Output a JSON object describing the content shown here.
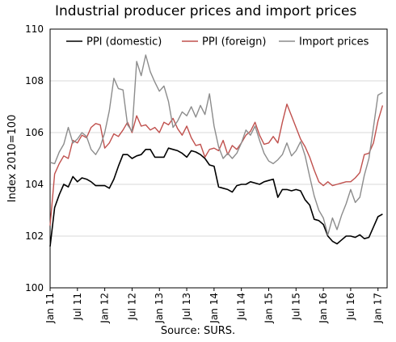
{
  "chart_data": {
    "type": "line",
    "title": "Industrial producer prices and import prices",
    "ylabel": "Index 2010=100",
    "xlabel": "",
    "source": "Source: SURS.",
    "ylim": [
      100,
      110
    ],
    "yticks": [
      100,
      102,
      104,
      106,
      108,
      110
    ],
    "xlim": [
      2011.0,
      2017.1667
    ],
    "xticks": [
      {
        "label": "Jan 11",
        "x": 2011.0
      },
      {
        "label": "Jul 11",
        "x": 2011.5
      },
      {
        "label": "Jan 12",
        "x": 2012.0
      },
      {
        "label": "Jul 12",
        "x": 2012.5
      },
      {
        "label": "Jan 13",
        "x": 2013.0
      },
      {
        "label": "Jul 13",
        "x": 2013.5
      },
      {
        "label": "Jan 14",
        "x": 2014.0
      },
      {
        "label": "Jul 14",
        "x": 2014.5
      },
      {
        "label": "Jan 15",
        "x": 2015.0
      },
      {
        "label": "Jul 15",
        "x": 2015.5
      },
      {
        "label": "Jan 16",
        "x": 2016.0
      },
      {
        "label": "Jul 16",
        "x": 2016.5
      },
      {
        "label": "Jan 17",
        "x": 2017.0
      }
    ],
    "legend_position": "top",
    "grid": "horizontal",
    "x_start": 2011.0,
    "x_step_months": 1,
    "series": [
      {
        "name": "PPI (domestic)",
        "color": "#000000",
        "values": [
          101.6,
          103.1,
          103.6,
          104.0,
          103.9,
          104.3,
          104.1,
          104.25,
          104.2,
          104.1,
          103.95,
          103.95,
          103.95,
          103.85,
          104.2,
          104.7,
          105.15,
          105.15,
          105.0,
          105.1,
          105.15,
          105.35,
          105.35,
          105.05,
          105.05,
          105.05,
          105.4,
          105.35,
          105.3,
          105.2,
          105.05,
          105.3,
          105.25,
          105.15,
          105.0,
          104.75,
          104.7,
          103.9,
          103.85,
          103.8,
          103.7,
          103.95,
          104.0,
          104.0,
          104.1,
          104.05,
          104.0,
          104.1,
          104.15,
          104.2,
          103.5,
          103.8,
          103.8,
          103.75,
          103.8,
          103.75,
          103.4,
          103.2,
          102.65,
          102.6,
          102.45,
          102.0,
          101.8,
          101.7,
          101.85,
          102.0,
          102.0,
          101.95,
          102.05,
          101.9,
          101.95,
          102.35,
          102.75,
          102.85
        ]
      },
      {
        "name": "PPI (foreign)",
        "color": "#c0504d",
        "values": [
          102.4,
          104.4,
          104.8,
          105.1,
          105.0,
          105.7,
          105.6,
          105.9,
          105.8,
          106.2,
          106.35,
          106.3,
          105.4,
          105.6,
          105.95,
          105.85,
          106.1,
          106.4,
          106.0,
          106.65,
          106.25,
          106.3,
          106.1,
          106.2,
          106.0,
          106.4,
          106.3,
          106.55,
          106.15,
          105.9,
          106.25,
          105.8,
          105.5,
          105.55,
          105.05,
          105.35,
          105.4,
          105.3,
          105.7,
          105.15,
          105.5,
          105.35,
          105.6,
          105.9,
          106.05,
          106.4,
          105.9,
          105.55,
          105.6,
          105.85,
          105.6,
          106.4,
          107.1,
          106.65,
          106.2,
          105.75,
          105.45,
          105.05,
          104.55,
          104.1,
          103.95,
          104.1,
          103.95,
          104.0,
          104.05,
          104.1,
          104.1,
          104.25,
          104.45,
          105.15,
          105.2,
          105.6,
          106.45,
          107.05
        ]
      },
      {
        "name": "Import prices",
        "color": "#8c8c8c",
        "values": [
          104.85,
          104.8,
          105.25,
          105.55,
          106.2,
          105.6,
          105.75,
          106.0,
          105.85,
          105.35,
          105.15,
          105.45,
          106.0,
          106.85,
          108.1,
          107.7,
          107.65,
          106.3,
          106.05,
          108.75,
          108.2,
          109.0,
          108.35,
          107.95,
          107.6,
          107.8,
          107.2,
          106.2,
          106.45,
          106.8,
          106.65,
          107.0,
          106.6,
          107.05,
          106.7,
          107.5,
          106.25,
          105.45,
          105.0,
          105.2,
          105.0,
          105.2,
          105.6,
          106.1,
          105.9,
          106.25,
          105.7,
          105.2,
          104.9,
          104.8,
          104.95,
          105.15,
          105.6,
          105.1,
          105.3,
          105.65,
          105.1,
          104.3,
          103.55,
          103.0,
          102.7,
          102.05,
          102.7,
          102.25,
          102.8,
          103.25,
          103.8,
          103.3,
          103.5,
          104.35,
          105.0,
          106.2,
          107.45,
          107.55
        ]
      }
    ]
  }
}
